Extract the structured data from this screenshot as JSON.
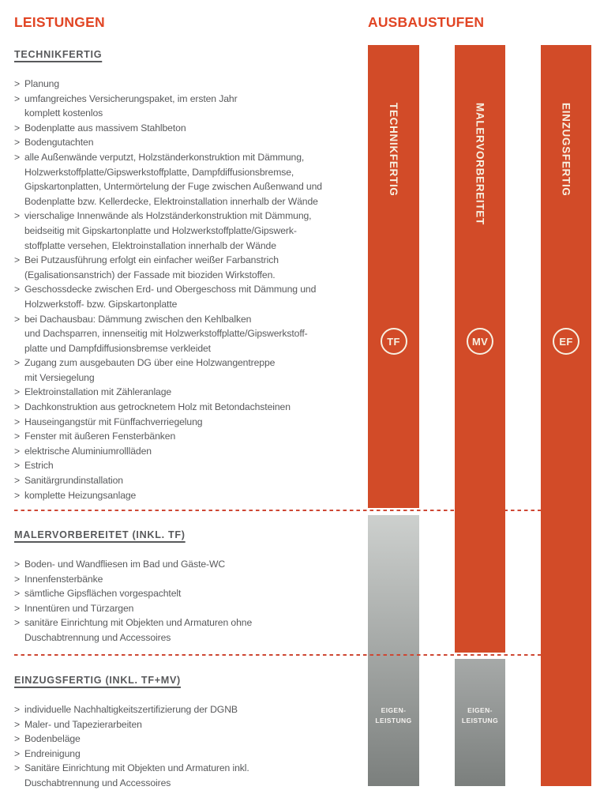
{
  "list_marker": ">",
  "headers": {
    "left": "LEISTUNGEN",
    "right": "AUSBAUSTUFEN"
  },
  "colors": {
    "header_orange": "#e14524",
    "bar_orange": "#d24b28",
    "text_gray": "#58595b",
    "dash_red": "#ce4733",
    "gray_light": "#cdd0ce",
    "gray_mid": "#a6a9a8",
    "gray_dark": "#7b7f7d",
    "bar_text_cream": "#f7f0e1"
  },
  "sections": [
    {
      "heading": "TECHNIKFERTIG",
      "items": [
        "Planung",
        "umfangreiches Versicherungspaket, im ersten Jahr\nkomplett kostenlos",
        "Bodenplatte aus massivem Stahlbeton",
        "Bodengutachten",
        "alle Außenwände verputzt, Holzständerkonstruktion mit Dämmung,\nHolzwerkstoffplatte/Gipswerkstoffplatte, Dampfdiffusionsbremse,\nGipskartonplatten, Untermörtelung der Fuge zwischen Außenwand und\nBodenplatte bzw. Kellerdecke, Elektroinstallation innerhalb der Wände",
        "vierschalige Innenwände als Holzständerkonstruktion mit Dämmung,\nbeidseitig mit Gipskartonplatte und Holzwerkstoffplatte/Gipswerk-\nstoffplatte versehen, Elektroinstallation innerhalb der Wände",
        "Bei Putzausführung erfolgt ein einfacher weißer Farbanstrich\n(Egalisationsanstrich) der Fassade mit bioziden Wirkstoffen.",
        "Geschossdecke zwischen Erd- und Obergeschoss mit Dämmung und\nHolzwerkstoff- bzw. Gipskartonplatte",
        "bei Dachausbau: Dämmung zwischen den Kehlbalken\nund Dachsparren, innenseitig mit Holzwerkstoffplatte/Gipswerkstoff-\nplatte und Dampfdiffusionsbremse verkleidet",
        "Zugang zum ausgebauten DG über eine Holzwangentreppe\nmit Versiegelung",
        "Elektroinstallation mit Zähleranlage",
        "Dachkonstruktion aus getrocknetem Holz mit Betondachsteinen",
        "Hauseingangstür mit Fünffachverriegelung",
        "Fenster mit äußeren Fensterbänken",
        "elektrische Aluminiumrollläden",
        "Estrich",
        "Sanitärgrundinstallation",
        "komplette Heizungsanlage"
      ]
    },
    {
      "heading": "MALERVORBEREITET (INKL. TF)",
      "items": [
        "Boden- und Wandfliesen im Bad und Gäste-WC",
        "Innenfensterbänke",
        "sämtliche Gipsflächen vorgespachtelt",
        "Innentüren und Türzargen",
        "sanitäre Einrichtung mit Objekten und Armaturen ohne\nDuschabtrennung und Accessoires"
      ]
    },
    {
      "heading": "EINZUGSFERTIG (INKL. TF+MV)",
      "items": [
        "individuelle Nachhaltigkeitszertifizierung der DGNB",
        "Maler- und Tapezierarbeiten",
        "Bodenbeläge",
        "Endreinigung",
        "Sanitäre Einrichtung mit Objekten und Armaturen inkl.\nDuschabtrennung und Accessoires"
      ]
    }
  ],
  "stages": [
    {
      "label": "TECHNIKFERTIG",
      "badge": "TF",
      "own_work": "EIGEN-\nLEISTUNG"
    },
    {
      "label": "MALERVORBEREITET",
      "badge": "MV",
      "own_work": "EIGEN-\nLEISTUNG"
    },
    {
      "label": "EINZUGSFERTIG",
      "badge": "EF"
    }
  ]
}
